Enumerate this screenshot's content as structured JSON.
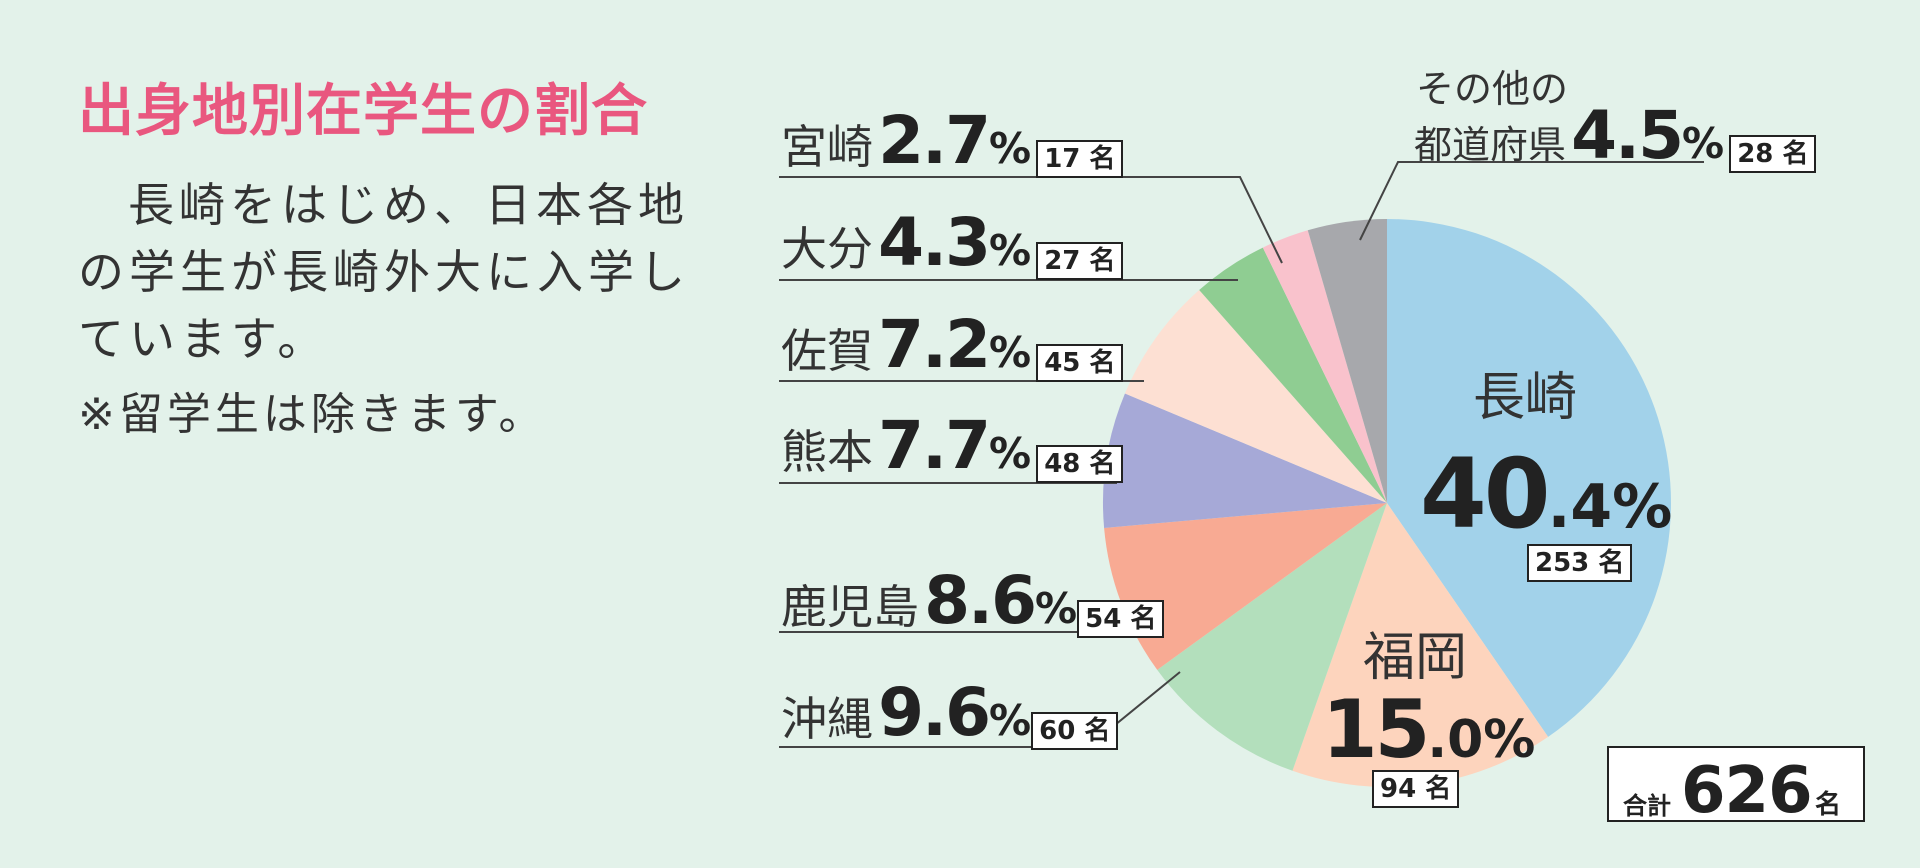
{
  "title": "出身地別在学生の割合",
  "description_lines": [
    "長崎をはじめ、日本各地",
    "の学生が長崎外大に入学し",
    "ています。"
  ],
  "note": "※留学生は除きます。",
  "chart_data": {
    "type": "pie",
    "unit_label": "名",
    "total_label": "合計",
    "total": 626,
    "slices": [
      {
        "name": "長崎",
        "percent": 40.4,
        "count": 253,
        "color": "#a2d2ea"
      },
      {
        "name": "福岡",
        "percent": 15.0,
        "count": 94,
        "color": "#fdd4bd"
      },
      {
        "name": "沖縄",
        "percent": 9.6,
        "count": 60,
        "color": "#b3dfbc"
      },
      {
        "name": "鹿児島",
        "percent": 8.6,
        "count": 54,
        "color": "#f8aa93"
      },
      {
        "name": "熊本",
        "percent": 7.7,
        "count": 48,
        "color": "#a6a9d7"
      },
      {
        "name": "佐賀",
        "percent": 7.2,
        "count": 45,
        "color": "#fde0d3"
      },
      {
        "name": "大分",
        "percent": 4.3,
        "count": 27,
        "color": "#8fcd92"
      },
      {
        "name": "宮崎",
        "percent": 2.7,
        "count": 17,
        "color": "#f9c2cc"
      },
      {
        "name_lines": [
          "その他の",
          "都道府県"
        ],
        "percent": 4.5,
        "count": 28,
        "color": "#a7a8ac"
      }
    ]
  },
  "labels": {
    "nagasaki": {
      "name": "長崎",
      "int": "40",
      "dec": ".4%",
      "count": "253 名"
    },
    "fukuoka": {
      "name": "福岡",
      "int": "15",
      "dec": ".0%",
      "count": "94 名"
    },
    "okinawa": {
      "name": "沖縄",
      "int": "9.6",
      "pct": "%",
      "count": "60 名"
    },
    "kagoshima": {
      "name": "鹿児島",
      "int": "8.6",
      "pct": "%",
      "count": "54 名"
    },
    "kumamoto": {
      "name": "熊本",
      "int": "7.7",
      "pct": "%",
      "count": "48 名"
    },
    "saga": {
      "name": "佐賀",
      "int": "7.2",
      "pct": "%",
      "count": "45 名"
    },
    "oita": {
      "name": "大分",
      "int": "4.3",
      "pct": "%",
      "count": "27 名"
    },
    "miyazaki": {
      "name": "宮崎",
      "int": "2.7",
      "pct": "%",
      "count": "17 名"
    },
    "other": {
      "line1": "その他の",
      "line2": "都道府県",
      "int": "4.5",
      "pct": "%",
      "count": "28 名"
    }
  },
  "total_box": {
    "label": "合計",
    "value": "626",
    "unit": "名"
  }
}
